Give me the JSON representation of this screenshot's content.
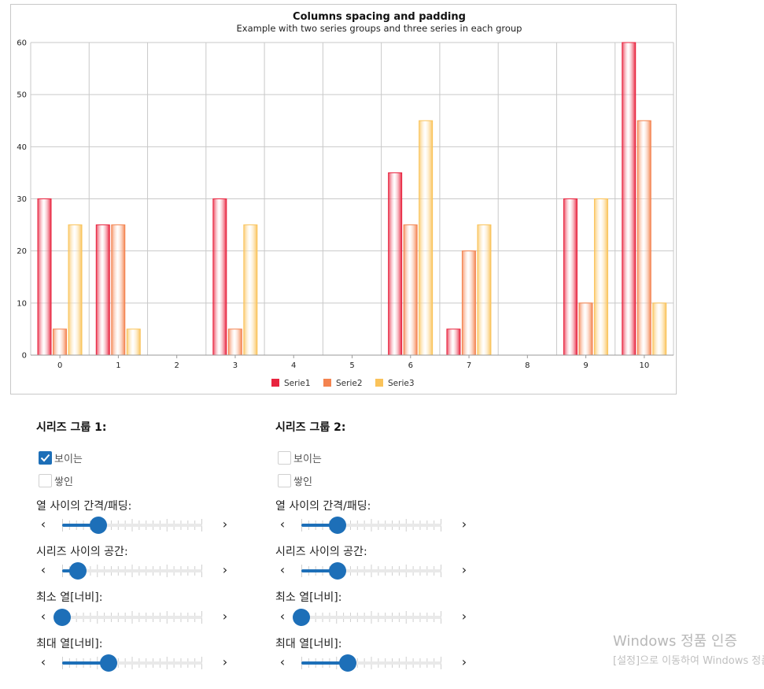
{
  "chart_data": {
    "type": "bar",
    "title": "Columns spacing and padding",
    "subtitle": "Example with two series groups and three series in each group",
    "categories": [
      "0",
      "1",
      "2",
      "3",
      "4",
      "5",
      "6",
      "7",
      "8",
      "9",
      "10"
    ],
    "series": [
      {
        "name": "Serie1",
        "color": "#e8243f",
        "values": [
          30,
          25,
          0,
          30,
          0,
          0,
          35,
          5,
          0,
          30,
          60
        ]
      },
      {
        "name": "Serie2",
        "color": "#f4834f",
        "values": [
          5,
          25,
          0,
          5,
          0,
          0,
          25,
          20,
          0,
          10,
          45
        ]
      },
      {
        "name": "Serie3",
        "color": "#fac35a",
        "values": [
          25,
          5,
          0,
          25,
          0,
          0,
          45,
          25,
          0,
          30,
          10
        ]
      }
    ],
    "y_ticks": [
      "0",
      "10",
      "20",
      "30",
      "40",
      "50",
      "60"
    ],
    "ylim": [
      0,
      60
    ],
    "grid": true,
    "legend_position": "bottom-center"
  },
  "groups": [
    {
      "title": "시리즈 그룹 1:",
      "visible": {
        "label": "보이는",
        "checked": true
      },
      "stacked": {
        "label": "쌓인",
        "checked": false
      },
      "sliders": [
        {
          "label": "열 사이의 간격/패딩:",
          "value": 0.26
        },
        {
          "label": "시리즈 사이의 공간:",
          "value": 0.11
        },
        {
          "label": "최소 열[너비]:",
          "value": 0.0
        },
        {
          "label": "최대 열[너비]:",
          "value": 0.33
        }
      ]
    },
    {
      "title": "시리즈 그룹 2:",
      "visible": {
        "label": "보이는",
        "checked": false
      },
      "stacked": {
        "label": "쌓인",
        "checked": false
      },
      "sliders": [
        {
          "label": "열 사이의 간격/패딩:",
          "value": 0.26
        },
        {
          "label": "시리즈 사이의 공간:",
          "value": 0.26
        },
        {
          "label": "최소 열[너비]:",
          "value": 0.0
        },
        {
          "label": "최대 열[너비]:",
          "value": 0.33
        }
      ]
    }
  ],
  "icons": {
    "prev": "chevron-left-icon",
    "next": "chevron-right-icon",
    "check": "checkmark-icon"
  },
  "watermark": {
    "line1": "Windows 정품 인증",
    "line2": "[설정]으로 이동하여 Windows 정품 인증"
  }
}
